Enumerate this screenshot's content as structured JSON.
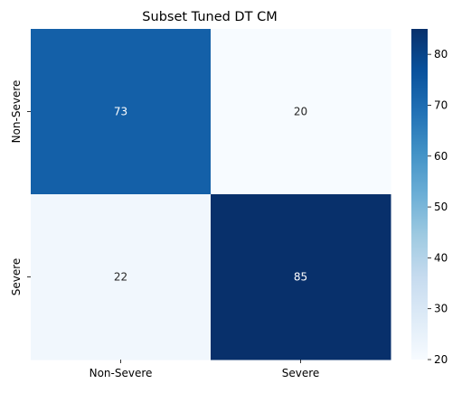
{
  "chart_data": {
    "type": "heatmap",
    "title": "Subset Tuned DT CM",
    "x_categories": [
      "Non-Severe",
      "Severe"
    ],
    "y_categories": [
      "Non-Severe",
      "Severe"
    ],
    "values": [
      [
        73,
        20
      ],
      [
        22,
        85
      ]
    ],
    "colormap": "Blues",
    "colorbar": {
      "range": [
        20,
        85
      ],
      "ticks": [
        20,
        30,
        40,
        50,
        60,
        70,
        80
      ]
    },
    "colors": {
      "low": "#f7fbff",
      "high": "#08306b",
      "label_on_dark": "#ffffff",
      "label_on_light": "#262626"
    }
  }
}
